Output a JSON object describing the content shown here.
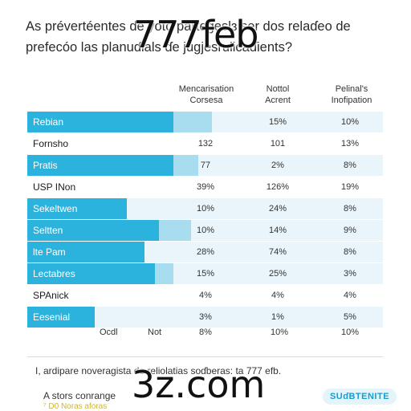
{
  "title": "As prévertéentes de yoto partegeslɜ ser dos relaɗeo de prefecóo las planuɗials ɗe jugjesrulicaɗients?",
  "watermark_top": "777feb",
  "watermark_bottom": "3z.com",
  "chart_data": {
    "type": "table",
    "columns": [
      "Mencarisation Corsesa",
      "Nottol Acrent",
      "Pelinal's Inofipation"
    ],
    "rows": [
      {
        "label": "Rebian",
        "shaded": true,
        "bar": 0.41,
        "bar_ext": 0.52,
        "values": [
          "",
          "15%",
          "10%"
        ]
      },
      {
        "label": "Fornsho",
        "shaded": false,
        "bar": 0,
        "bar_ext": 0,
        "values": [
          "132",
          "101",
          "13%"
        ]
      },
      {
        "label": "Pratis",
        "shaded": true,
        "bar": 0.41,
        "bar_ext": 0.48,
        "values": [
          "77",
          "2%",
          "8%"
        ]
      },
      {
        "label": "USP INon",
        "shaded": false,
        "bar": 0,
        "bar_ext": 0,
        "values": [
          "39%",
          "126%",
          "19%"
        ]
      },
      {
        "label": "Sekeltwen",
        "shaded": true,
        "bar": 0.28,
        "bar_ext": 0.28,
        "values": [
          "10%",
          "24%",
          "8%"
        ]
      },
      {
        "label": "Seltten",
        "shaded": true,
        "bar": 0.37,
        "bar_ext": 0.46,
        "values": [
          "10%",
          "14%",
          "9%"
        ]
      },
      {
        "label": "lte Pam",
        "shaded": true,
        "bar": 0.33,
        "bar_ext": 0.33,
        "values": [
          "28%",
          "74%",
          "8%"
        ]
      },
      {
        "label": "Lectabres",
        "shaded": true,
        "bar": 0.36,
        "bar_ext": 0.41,
        "values": [
          "15%",
          "25%",
          "3%"
        ]
      },
      {
        "label": "SPAnick",
        "shaded": false,
        "bar": 0,
        "bar_ext": 0,
        "values": [
          "4%",
          "4%",
          "4%"
        ]
      },
      {
        "label": "Eesenial",
        "shaded": true,
        "bar": 0.19,
        "bar_ext": 0.19,
        "values": [
          "3%",
          "1%",
          "5%"
        ]
      }
    ],
    "footer": [
      "Ocdl",
      "Not",
      "8%",
      "10%",
      "10%"
    ]
  },
  "note1": "I, ardipare noveragista de reliolatias soɗberas: ta 777 efb.",
  "note2": "A stors conrange",
  "note3": "⁷ D0 Noras aforas",
  "subscribe_label": "SUɗBTENITE",
  "colors": {
    "bar": "#2bb3de",
    "bar_ext": "#a8dcef",
    "row_shade": "#e9f5fb"
  }
}
